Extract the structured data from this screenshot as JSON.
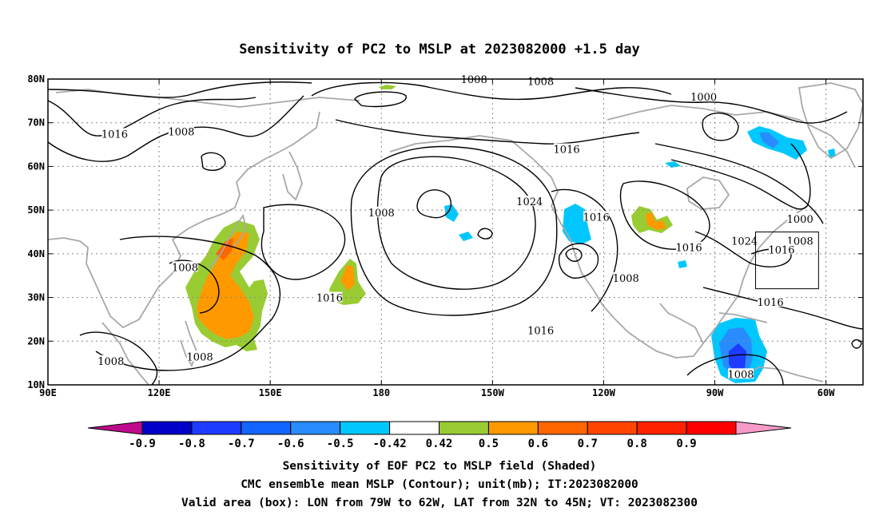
{
  "title": "Sensitivity of PC2 to MSLP at 2023082000 +1.5 day",
  "map": {
    "lat_range": [
      10,
      80
    ],
    "lon_range": [
      90,
      310
    ],
    "lat_ticks": [
      {
        "value": 80,
        "label": "80N"
      },
      {
        "value": 70,
        "label": "70N"
      },
      {
        "value": 60,
        "label": "60N"
      },
      {
        "value": 50,
        "label": "50N"
      },
      {
        "value": 40,
        "label": "40N"
      },
      {
        "value": 30,
        "label": "30N"
      },
      {
        "value": 20,
        "label": "20N"
      },
      {
        "value": 10,
        "label": "10N"
      }
    ],
    "lon_ticks": [
      {
        "value": 90,
        "label": "90E"
      },
      {
        "value": 120,
        "label": "120E"
      },
      {
        "value": 150,
        "label": "150E"
      },
      {
        "value": 180,
        "label": "180"
      },
      {
        "value": 210,
        "label": "150W"
      },
      {
        "value": 240,
        "label": "120W"
      },
      {
        "value": 270,
        "label": "90W"
      },
      {
        "value": 300,
        "label": "60W"
      }
    ],
    "grid_lines": true,
    "valid_box": {
      "lon_west": 281,
      "lon_east": 298,
      "lat_south": 32,
      "lat_north": 45
    },
    "contour_labels": [
      {
        "text": "1008",
        "lon": 205,
        "lat": 80
      },
      {
        "text": "1008",
        "lon": 223,
        "lat": 79.5
      },
      {
        "text": "1000",
        "lon": 267,
        "lat": 76
      },
      {
        "text": "1016",
        "lon": 108,
        "lat": 67.5
      },
      {
        "text": "1008",
        "lon": 126,
        "lat": 68
      },
      {
        "text": "1016",
        "lon": 230,
        "lat": 64
      },
      {
        "text": "1024",
        "lon": 220,
        "lat": 52
      },
      {
        "text": "1016",
        "lon": 238,
        "lat": 48.5
      },
      {
        "text": "1000",
        "lon": 293,
        "lat": 48
      },
      {
        "text": "1008",
        "lon": 180,
        "lat": 49.5
      },
      {
        "text": "1008",
        "lon": 293,
        "lat": 43
      },
      {
        "text": "1024",
        "lon": 278,
        "lat": 43
      },
      {
        "text": "1016",
        "lon": 263,
        "lat": 41.5
      },
      {
        "text": "1016",
        "lon": 288,
        "lat": 41
      },
      {
        "text": "1008",
        "lon": 127,
        "lat": 37
      },
      {
        "text": "1008",
        "lon": 246,
        "lat": 34.5
      },
      {
        "text": "1016",
        "lon": 166,
        "lat": 30
      },
      {
        "text": "1016",
        "lon": 285,
        "lat": 29
      },
      {
        "text": "1016",
        "lon": 223,
        "lat": 22.5
      },
      {
        "text": "1008",
        "lon": 131,
        "lat": 16.5
      },
      {
        "text": "1008",
        "lon": 107,
        "lat": 15.5
      },
      {
        "text": "1008",
        "lon": 277,
        "lat": 12.5
      }
    ]
  },
  "colorbar": {
    "colors": [
      "#be0a8c",
      "#0000c8",
      "#1e3cff",
      "#1464ff",
      "#288cff",
      "#00c8ff",
      "#ffffff",
      "#99cc33",
      "#ff9900",
      "#ff6600",
      "#ff4400",
      "#ff2200",
      "#ff0000",
      "#f79ac8"
    ],
    "labels": [
      "-0.9",
      "-0.8",
      "-0.7",
      "-0.6",
      "-0.5",
      "-0.42",
      "0.42",
      "0.5",
      "0.6",
      "0.7",
      "0.8",
      "0.9"
    ]
  },
  "caption": {
    "line1": "Sensitivity of EOF PC2 to MSLP field (Shaded)",
    "line2": "CMC ensemble mean MSLP (Contour); unit(mb); IT:2023082000",
    "line3": "Valid area (box): LON from 79W to 62W, LAT from 32N to 45N; VT: 2023082300"
  }
}
